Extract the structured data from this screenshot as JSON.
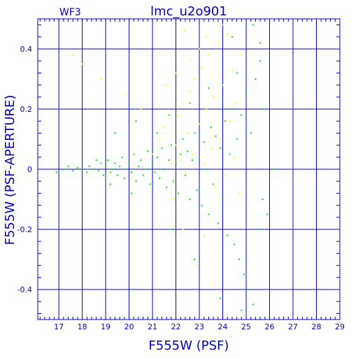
{
  "chart_data": {
    "type": "scatter",
    "title": "lmc_u2o901",
    "corner_label": "WF3",
    "xlabel": "F555W (PSF)",
    "ylabel": "F555W (PSF-APERTURE)",
    "xlim": [
      16.1,
      29.0
    ],
    "ylim": [
      -0.5,
      0.5
    ],
    "x_ticks": [
      17,
      18,
      19,
      20,
      21,
      22,
      23,
      24,
      25,
      26,
      27,
      28,
      29
    ],
    "y_ticks": [
      -0.4,
      -0.2,
      0,
      0.2,
      0.4
    ],
    "y_tick_labels": [
      "-0.4",
      "-0.2",
      "0",
      "0.2",
      "0.4"
    ],
    "grid": true,
    "colors": {
      "axes": "#0000cc",
      "green_series": "#00e600",
      "yellow_series": "#ffff00"
    },
    "series": [
      {
        "color": "#00e600",
        "points": [
          [
            16.9,
            -0.01
          ],
          [
            17.2,
            0.0
          ],
          [
            17.4,
            0.01
          ],
          [
            17.6,
            -0.005
          ],
          [
            17.8,
            0.005
          ],
          [
            18.0,
            0.0
          ],
          [
            18.2,
            -0.01
          ],
          [
            18.3,
            0.01
          ],
          [
            18.5,
            0.0
          ],
          [
            18.7,
            -0.005
          ],
          [
            18.8,
            0.02
          ],
          [
            18.9,
            -0.02
          ],
          [
            19.0,
            0.01
          ],
          [
            19.1,
            0.03
          ],
          [
            19.2,
            -0.01
          ],
          [
            19.3,
            0.0
          ],
          [
            19.4,
            0.02
          ],
          [
            19.5,
            -0.02
          ],
          [
            19.6,
            0.01
          ],
          [
            19.7,
            0.04
          ],
          [
            19.8,
            -0.03
          ],
          [
            19.9,
            0.0
          ],
          [
            20.0,
            0.02
          ],
          [
            20.1,
            -0.01
          ],
          [
            20.2,
            0.05
          ],
          [
            20.3,
            -0.04
          ],
          [
            20.4,
            0.01
          ],
          [
            20.5,
            0.03
          ],
          [
            20.6,
            -0.02
          ],
          [
            20.7,
            0.0
          ],
          [
            20.8,
            0.06
          ],
          [
            20.9,
            -0.05
          ],
          [
            21.0,
            0.02
          ],
          [
            21.1,
            -0.01
          ],
          [
            21.2,
            0.04
          ],
          [
            21.3,
            -0.03
          ],
          [
            21.4,
            0.07
          ],
          [
            21.5,
            0.0
          ],
          [
            21.6,
            -0.06
          ],
          [
            21.7,
            0.03
          ],
          [
            21.8,
            0.08
          ],
          [
            21.9,
            -0.04
          ],
          [
            22.0,
            0.02
          ],
          [
            22.1,
            -0.08
          ],
          [
            22.2,
            0.05
          ],
          [
            22.3,
            0.1
          ],
          [
            22.4,
            -0.02
          ],
          [
            22.5,
            0.06
          ],
          [
            22.6,
            -0.1
          ],
          [
            22.7,
            0.03
          ],
          [
            22.8,
            0.12
          ],
          [
            22.9,
            -0.07
          ],
          [
            23.0,
            0.04
          ],
          [
            23.1,
            -0.12
          ],
          [
            23.2,
            0.09
          ],
          [
            23.3,
            0.0
          ],
          [
            23.4,
            -0.15
          ],
          [
            23.5,
            0.14
          ],
          [
            23.6,
            -0.05
          ],
          [
            23.7,
            0.11
          ],
          [
            23.8,
            -0.18
          ],
          [
            23.9,
            0.07
          ],
          [
            24.0,
            -0.1
          ],
          [
            24.1,
            0.16
          ],
          [
            24.2,
            -0.22
          ],
          [
            24.3,
            0.05
          ],
          [
            24.4,
            0.2
          ],
          [
            24.5,
            -0.25
          ],
          [
            24.6,
            0.1
          ],
          [
            24.7,
            -0.3
          ],
          [
            24.8,
            0.18
          ],
          [
            24.9,
            -0.35
          ],
          [
            25.0,
            0.25
          ],
          [
            25.1,
            -0.4
          ],
          [
            25.2,
            0.12
          ],
          [
            25.3,
            -0.45
          ],
          [
            25.4,
            0.3
          ],
          [
            25.5,
            -0.2
          ],
          [
            25.6,
            0.36
          ],
          [
            25.7,
            -0.1
          ],
          [
            24.4,
            0.44
          ],
          [
            25.3,
            0.48
          ],
          [
            25.6,
            0.42
          ],
          [
            21.7,
            0.18
          ],
          [
            20.3,
            0.16
          ],
          [
            19.4,
            0.12
          ],
          [
            24.8,
            -0.47
          ],
          [
            23.9,
            -0.43
          ],
          [
            22.8,
            -0.3
          ],
          [
            21.9,
            -0.2
          ],
          [
            20.1,
            -0.08
          ],
          [
            19.2,
            -0.05
          ],
          [
            18.6,
            0.03
          ],
          [
            26.1,
            0.0
          ],
          [
            25.9,
            -0.15
          ],
          [
            25.8,
            0.2
          ],
          [
            24.6,
            0.32
          ],
          [
            23.4,
            0.27
          ],
          [
            22.6,
            0.22
          ],
          [
            21.2,
            0.12
          ]
        ]
      },
      {
        "color": "#ffff00",
        "points": [
          [
            17.6,
            0.38
          ],
          [
            18.0,
            0.35
          ],
          [
            18.8,
            0.3
          ],
          [
            19.9,
            0.25
          ],
          [
            20.5,
            0.2
          ],
          [
            21.0,
            0.05
          ],
          [
            21.3,
            0.1
          ],
          [
            21.5,
            0.14
          ],
          [
            21.8,
            0.02
          ],
          [
            22.0,
            0.08
          ],
          [
            22.1,
            0.18
          ],
          [
            22.2,
            0.03
          ],
          [
            22.3,
            0.22
          ],
          [
            22.4,
            -0.01
          ],
          [
            22.5,
            0.12
          ],
          [
            22.6,
            0.26
          ],
          [
            22.7,
            0.05
          ],
          [
            22.8,
            0.3
          ],
          [
            22.9,
            -0.04
          ],
          [
            23.0,
            0.15
          ],
          [
            23.1,
            0.34
          ],
          [
            23.2,
            0.02
          ],
          [
            23.3,
            0.2
          ],
          [
            23.4,
            0.38
          ],
          [
            23.5,
            0.07
          ],
          [
            23.6,
            0.24
          ],
          [
            23.7,
            -0.06
          ],
          [
            23.8,
            0.42
          ],
          [
            23.9,
            0.1
          ],
          [
            24.0,
            0.28
          ],
          [
            24.1,
            -0.02
          ],
          [
            24.2,
            0.45
          ],
          [
            24.3,
            0.16
          ],
          [
            24.4,
            0.33
          ],
          [
            24.5,
            0.04
          ],
          [
            24.6,
            0.22
          ],
          [
            24.7,
            -0.08
          ],
          [
            22.3,
            -0.2
          ],
          [
            22.9,
            -0.32
          ],
          [
            23.6,
            -0.38
          ],
          [
            22.6,
            0.36
          ],
          [
            23.3,
            0.44
          ],
          [
            21.6,
            0.28
          ],
          [
            22.0,
            0.32
          ],
          [
            24.8,
            0.38
          ],
          [
            23.0,
            0.4
          ],
          [
            22.4,
            0.46
          ],
          [
            21.9,
            -0.1
          ],
          [
            23.2,
            -0.22
          ],
          [
            24.0,
            0.48
          ]
        ]
      }
    ]
  }
}
